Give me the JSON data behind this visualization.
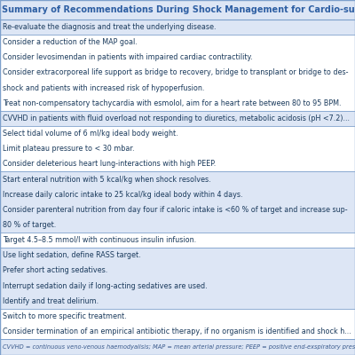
{
  "title": "Summary of Recommendations During Shock Management for Cardio-surgical Intensive Care Unit Patient The Silver Days",
  "title_color": "#2e5fa3",
  "title_fontsize": 7.0,
  "background_color": "#f5f7fc",
  "title_bg": "#dde6f5",
  "border_color": "#7da0cc",
  "text_color": "#1a3a5c",
  "footnote_color": "#3a5a8c",
  "sections": [
    {
      "lines": [
        "Re-evaluate the diagnosis and treat the underlying disease."
      ],
      "bg": "#dde6f5"
    },
    {
      "lines": [
        "Consider a reduction of the MAP goal.",
        "Consider levosimendan in patients with impaired cardiac contractility.",
        "Consider extracorporeal life support as bridge to recovery, bridge to transplant or bridge to des-",
        "shock and patients with increased risk of hypoperfusion.",
        "Treat non-compensatory tachycardia with esmolol, aim for a heart rate between 80 to 95 BPM."
      ],
      "bg": "#ffffff"
    },
    {
      "lines": [
        "CVVHD in patients with fluid overload not responding to diuretics, metabolic acidosis (pH <7.2)..."
      ],
      "bg": "#dde6f5"
    },
    {
      "lines": [
        "Select tidal volume of 6 ml/kg ideal body weight.",
        "Limit plateau pressure to < 30 mbar.",
        "Consider deleterious heart lung-interactions with high PEEP."
      ],
      "bg": "#ffffff"
    },
    {
      "lines": [
        "Start enteral nutrition with 5 kcal/kg when shock resolves.",
        "Increase daily caloric intake to 25 kcal/kg ideal body within 4 days.",
        "Consider parenteral nutrition from day four if caloric intake is <60 % of target and increase sup-",
        "80 % of target."
      ],
      "bg": "#dde6f5"
    },
    {
      "lines": [
        "Target 4.5–8.5 mmol/l with continuous insulin infusion."
      ],
      "bg": "#ffffff"
    },
    {
      "lines": [
        "Use light sedation, define RASS target.",
        "Prefer short acting sedatives.",
        "Interrupt sedation daily if long-acting sedatives are used.",
        "Identify and treat delirium."
      ],
      "bg": "#dde6f5"
    },
    {
      "lines": [
        "Switch to more specific treatment.",
        "Consider termination of an empirical antibiotic therapy, if no organism is identified and shock h..."
      ],
      "bg": "#ffffff"
    }
  ],
  "footnote": "CVVHD = continuous veno-venous haemodyalisis; MAP = mean arterial pressure; PEEP = positive end-exspiratory pressure; RASS = ...",
  "footnote_fontsize": 4.8,
  "footnote_bg": "#dde6f5",
  "footnote_color_italic": "#3a5a8c"
}
